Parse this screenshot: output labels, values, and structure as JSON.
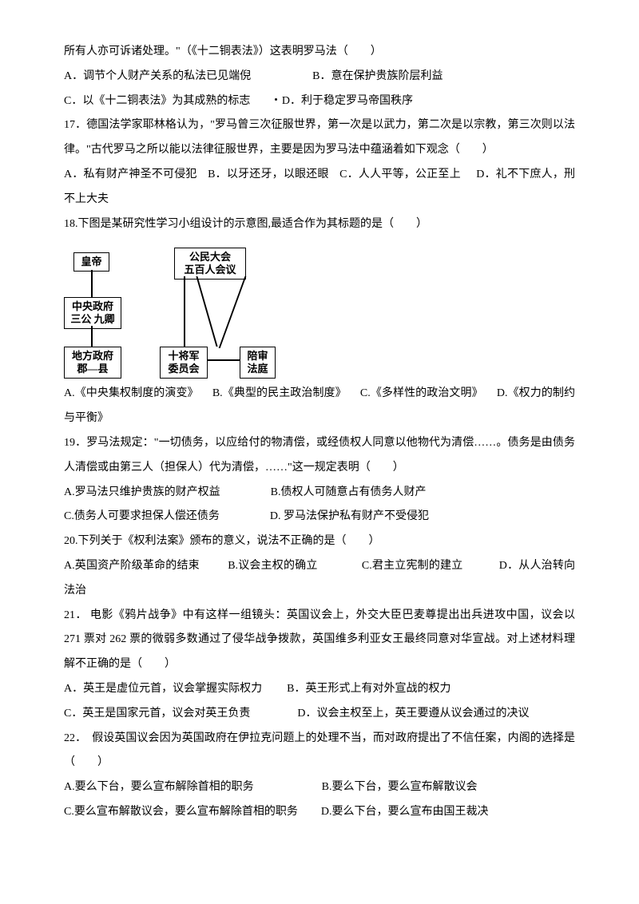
{
  "q16": {
    "pretext": "所有人亦可诉诸处理。\"（《十二铜表法》）这表明罗马法（　　）",
    "optA": "A．调节个人财产关系的私法已见端倪",
    "optB": "B．意在保护贵族阶层利益",
    "optC": "C．以《十二铜表法》为其成熟的标志",
    "optD": "D．利于稳定罗马帝国秩序"
  },
  "q17": {
    "stem": "17．德国法学家耶林格认为，\"罗马曾三次征服世界，第一次是以武力，第二次是以宗教，第三次则以法律。\"古代罗马之所以能以法律征服世界，主要是因为罗马法中蕴涵着如下观念（　　）",
    "optA": "A．私有财产神圣不可侵犯",
    "optB": "B．以牙还牙，以眼还眼",
    "optC": "C．人人平等，公正至上",
    "optD": "D．礼不下庶人，刑不上大夫"
  },
  "q18": {
    "stem": "18.下图是某研究性学习小组设计的示意图,最适合作为其标题的是（　　）",
    "optA": "A.《中央集权制度的演变》",
    "optB": "B.《典型的民主政治制度》",
    "optC": "C.《多样性的政治文明》",
    "optD": "D.《权力的制约与平衡》"
  },
  "diagram": {
    "b1": "皇帝",
    "b2": "公民大会\n五百人会议",
    "b3": "中央政府\n三公  九卿",
    "b4": "地方政府\n郡—县",
    "b5": "十将军\n委员会",
    "b6": "陪审\n法庭"
  },
  "q19": {
    "stem": "19．罗马法规定：\"一切债务，以应给付的物清偿，或经债权人同意以他物代为清偿……。债务是由债务人清偿或由第三人（担保人）代为清偿，……\"这一规定表明（　　）",
    "optA": "A.罗马法只维护贵族的财产权益",
    "optB": "B.债权人可随意占有债务人财产",
    "optC": "C.债务人可要求担保人偿还债务",
    "optD": "D. 罗马法保护私有财产不受侵犯"
  },
  "q20": {
    "stem": "20.下列关于《权利法案》颁布的意义，说法不正确的是（　　）",
    "optA": "A.英国资产阶级革命的结束",
    "optB": "B.议会主权的确立",
    "optC": "C.君主立宪制的建立",
    "optD": "D．从人治转向法治"
  },
  "q21": {
    "stem": "21． 电影《鸦片战争》中有这样一组镜头：英国议会上，外交大臣巴麦尊提出出兵进攻中国，议会以 271 票对 262 票的微弱多数通过了侵华战争拨款，英国维多利亚女王最终同意对华宣战。对上述材料理解不正确的是（　　）",
    "optA": "A．英王是虚位元首，议会掌握实际权力",
    "optB": "B．英王形式上有对外宣战的权力",
    "optC": "C．英王是国家元首，议会对英王负责",
    "optD": "D．议会主权至上，英王要遵从议会通过的决议"
  },
  "q22": {
    "stem": "22．　假设英国议会因为英国政府在伊拉克问题上的处理不当，而对政府提出了不信任案，内阁的选择是（　　）",
    "optA": "A.要么下台，要么宣布解除首相的职务",
    "optB": "B.要么下台，要么宣布解散议会",
    "optC": "C.要么宣布解散议会，要么宣布解除首相的职务",
    "optD": "D.要么下台，要么宣布由国王裁决"
  },
  "style": {
    "text_color": "#000000",
    "background": "#ffffff",
    "font_size_pt": 10.5,
    "line_height": 2.2
  }
}
